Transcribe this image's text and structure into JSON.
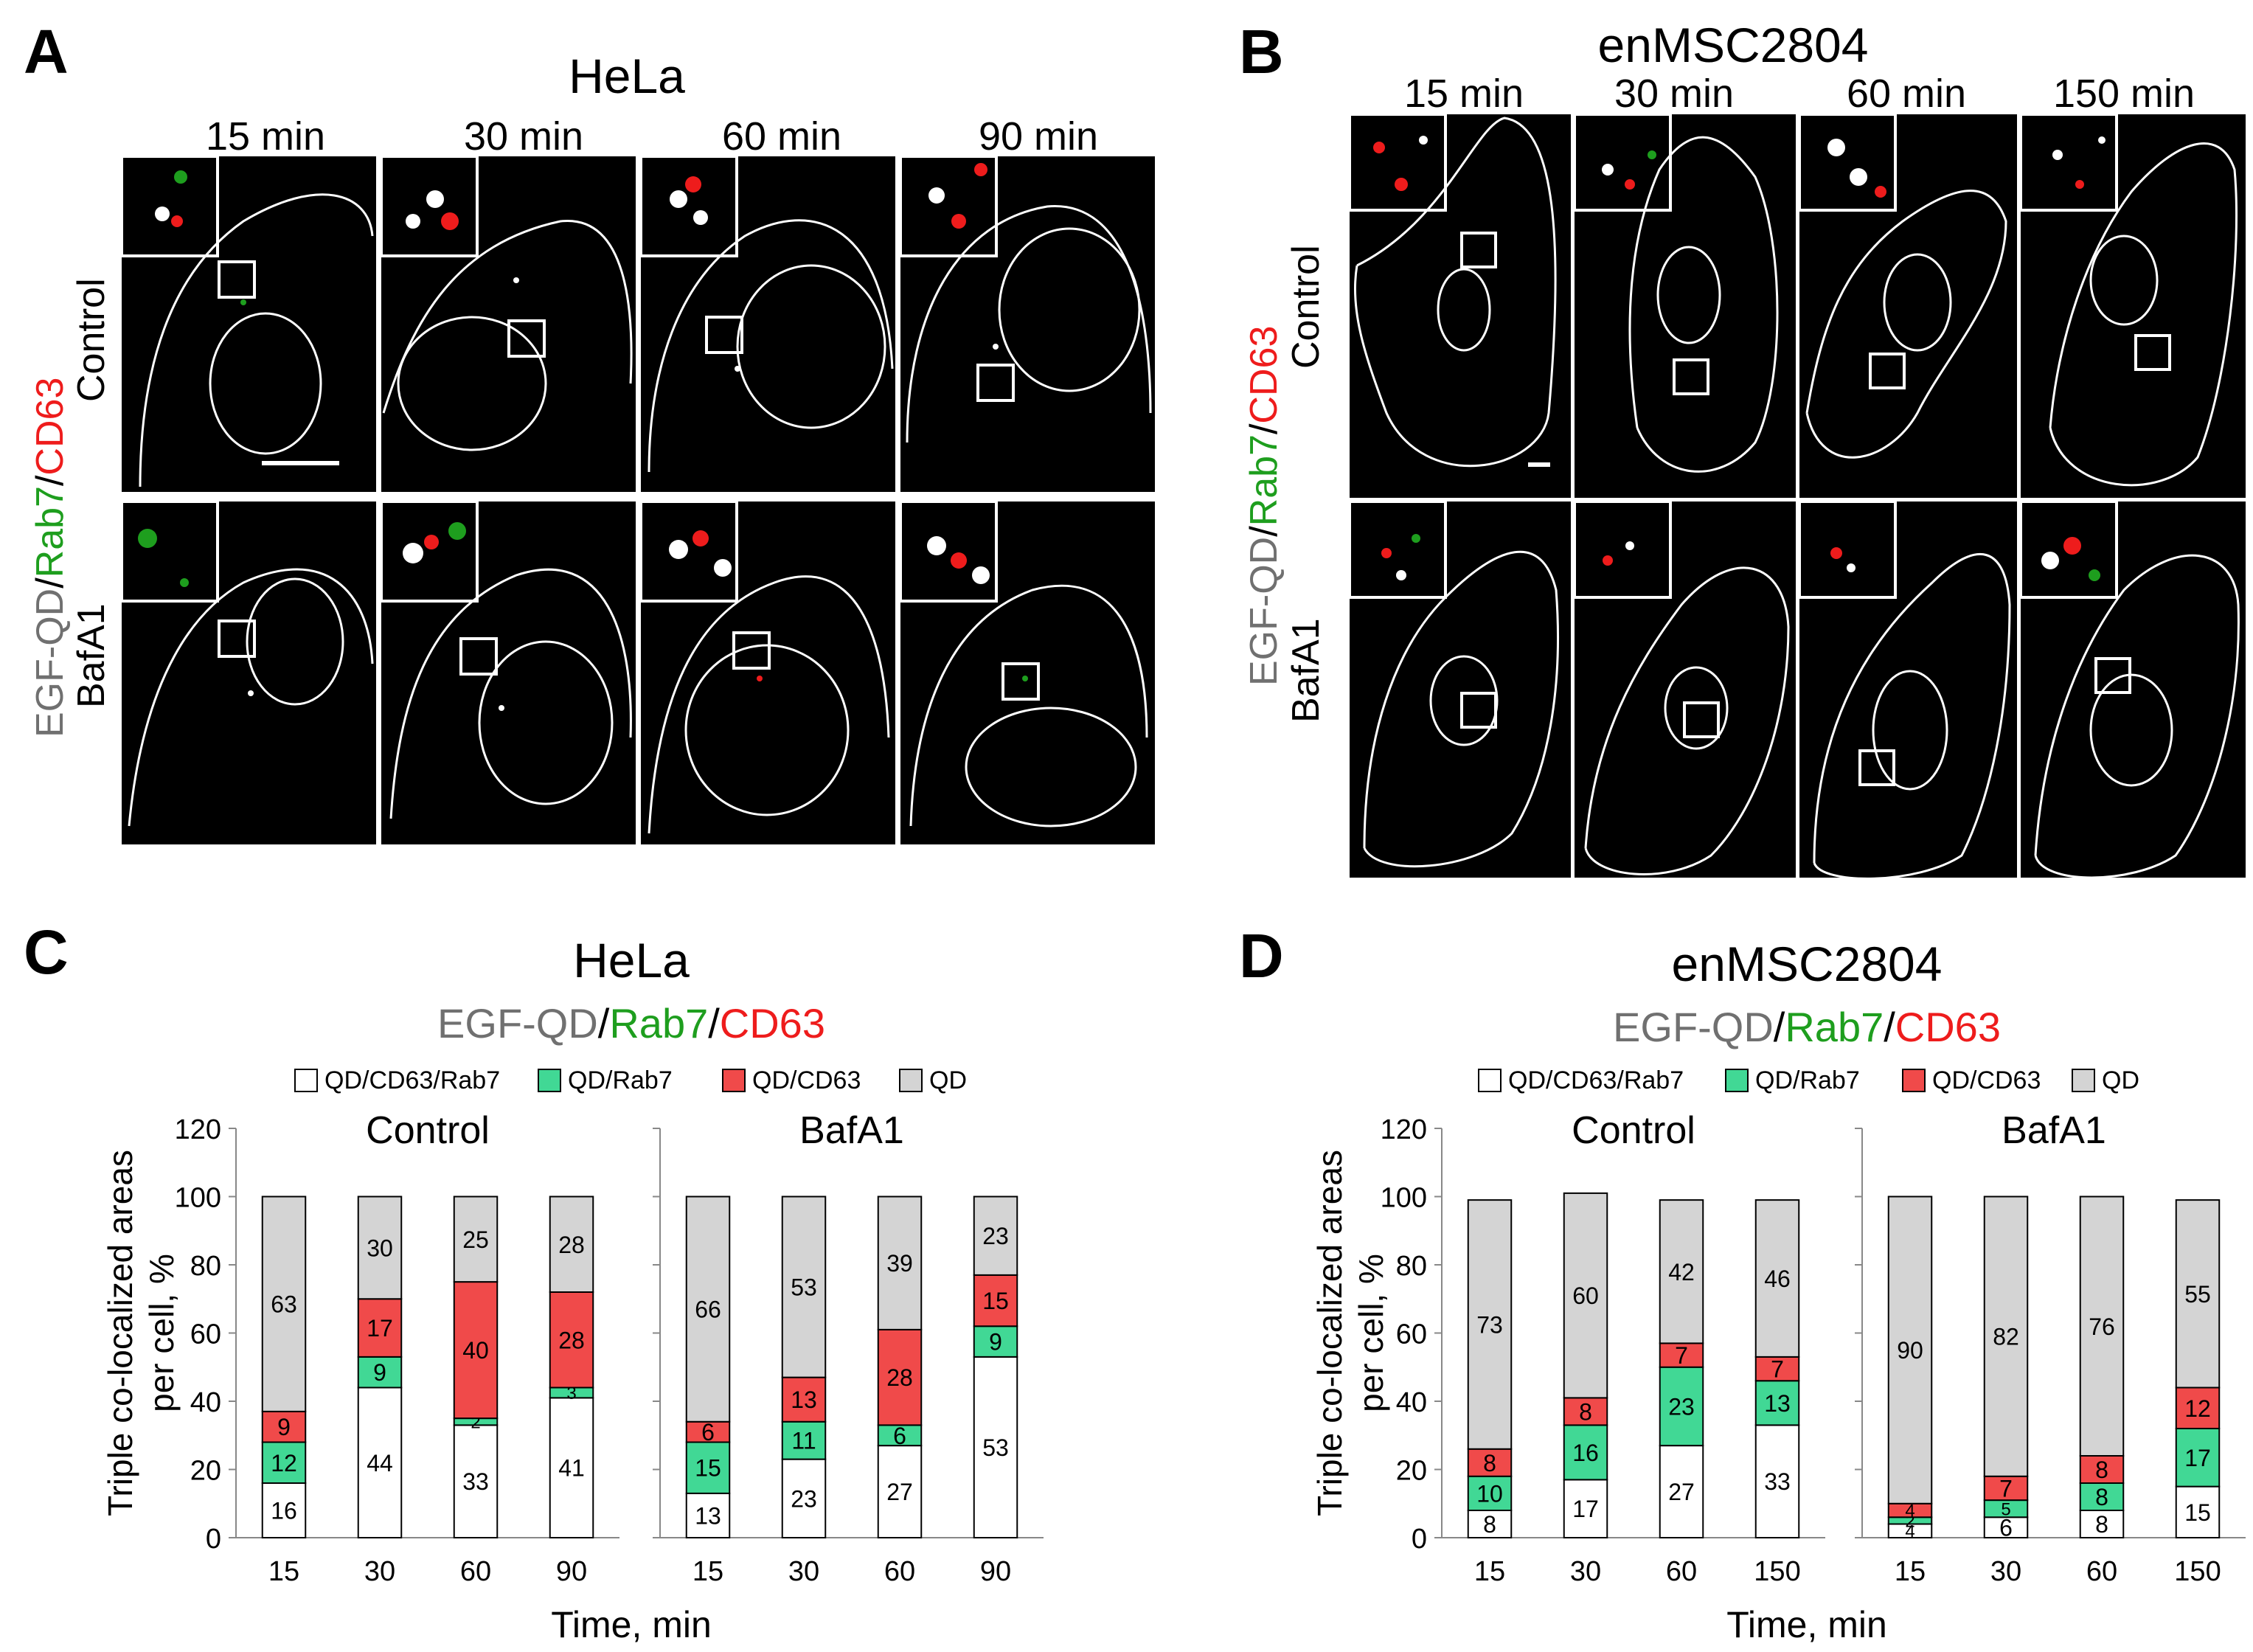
{
  "colors": {
    "qd_cd63_rab7": "#ffffff",
    "qd_rab7": "#41d895",
    "qd_cd63": "#f04a4a",
    "qd": "#d4d4d4",
    "stain_gray": "#707070",
    "stain_green": "#1e9e1e",
    "stain_red": "#ee1c1c"
  },
  "panel_A": {
    "letter": "A",
    "cell_line": "HeLa",
    "times": [
      "15 min",
      "30 min",
      "60 min",
      "90 min"
    ],
    "stain": {
      "qd": "EGF-QD",
      "sep": "/",
      "rab7": "Rab7",
      "cd63": "CD63"
    },
    "rows": [
      "Control",
      "BafA1"
    ]
  },
  "panel_B": {
    "letter": "B",
    "cell_line": "enMSC2804",
    "times": [
      "15 min",
      "30 min",
      "60 min",
      "150 min"
    ],
    "stain": {
      "qd": "EGF-QD",
      "sep": "/",
      "rab7": "Rab7",
      "cd63": "CD63"
    },
    "rows": [
      "Control",
      "BafA1"
    ]
  },
  "chart_data": [
    {
      "type": "bar",
      "stacked": true,
      "panel": "C",
      "title": "HeLa",
      "subtitle": {
        "qd": "EGF-QD",
        "sep": "/",
        "rab7": "Rab7",
        "cd63": "CD63"
      },
      "legend": [
        "QD/CD63/Rab7",
        "QD/Rab7",
        "QD/CD63",
        "QD"
      ],
      "ylabel": "Triple co-localized areas per cell, %",
      "xlabel": "Time, min",
      "ylim": [
        0,
        120
      ],
      "yticks": [
        "0",
        "20",
        "40",
        "60",
        "80",
        "100",
        "120"
      ],
      "groups": [
        {
          "name": "Control",
          "categories": [
            "15",
            "30",
            "60",
            "90"
          ],
          "series": [
            {
              "name": "QD/CD63/Rab7",
              "values": [
                16,
                44,
                33,
                41
              ]
            },
            {
              "name": "QD/Rab7",
              "values": [
                12,
                9,
                2,
                3
              ]
            },
            {
              "name": "QD/CD63",
              "values": [
                9,
                17,
                40,
                28
              ]
            },
            {
              "name": "QD",
              "values": [
                63,
                30,
                25,
                28
              ]
            }
          ]
        },
        {
          "name": "BafA1",
          "categories": [
            "15",
            "30",
            "60",
            "90"
          ],
          "series": [
            {
              "name": "QD/CD63/Rab7",
              "values": [
                13,
                23,
                27,
                53
              ]
            },
            {
              "name": "QD/Rab7",
              "values": [
                15,
                11,
                6,
                9
              ]
            },
            {
              "name": "QD/CD63",
              "values": [
                6,
                13,
                28,
                15
              ]
            },
            {
              "name": "QD",
              "values": [
                66,
                53,
                39,
                23
              ]
            }
          ]
        }
      ]
    },
    {
      "type": "bar",
      "stacked": true,
      "panel": "D",
      "title": "enMSC2804",
      "subtitle": {
        "qd": "EGF-QD",
        "sep": "/",
        "rab7": "Rab7",
        "cd63": "CD63"
      },
      "legend": [
        "QD/CD63/Rab7",
        "QD/Rab7",
        "QD/CD63",
        "QD"
      ],
      "ylabel": "Triple co-localized areas per cell, %",
      "xlabel": "Time, min",
      "ylim": [
        0,
        120
      ],
      "yticks": [
        "0",
        "20",
        "40",
        "60",
        "80",
        "100",
        "120"
      ],
      "groups": [
        {
          "name": "Control",
          "categories": [
            "15",
            "30",
            "60",
            "150"
          ],
          "series": [
            {
              "name": "QD/CD63/Rab7",
              "values": [
                8,
                17,
                27,
                33
              ]
            },
            {
              "name": "QD/Rab7",
              "values": [
                10,
                16,
                23,
                13
              ]
            },
            {
              "name": "QD/CD63",
              "values": [
                8,
                8,
                7,
                7
              ]
            },
            {
              "name": "QD",
              "values": [
                73,
                60,
                42,
                46
              ]
            }
          ]
        },
        {
          "name": "BafA1",
          "categories": [
            "15",
            "30",
            "60",
            "150"
          ],
          "series": [
            {
              "name": "QD/CD63/Rab7",
              "values": [
                4,
                6,
                8,
                15
              ]
            },
            {
              "name": "QD/Rab7",
              "values": [
                2,
                5,
                8,
                17
              ]
            },
            {
              "name": "QD/CD63",
              "values": [
                4,
                7,
                8,
                12
              ]
            },
            {
              "name": "QD",
              "values": [
                90,
                82,
                76,
                55
              ]
            }
          ]
        }
      ]
    }
  ]
}
